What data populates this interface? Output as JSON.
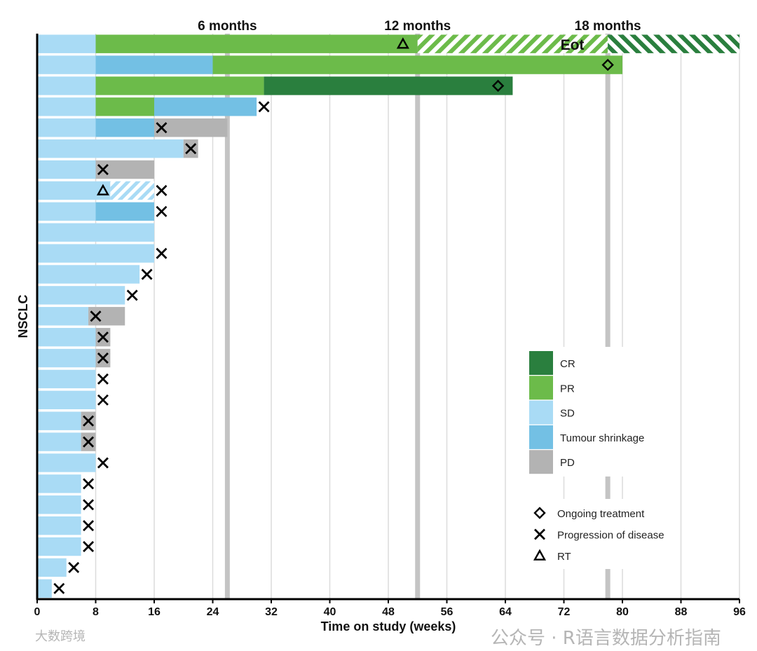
{
  "chart_data": {
    "type": "swimmer",
    "ylabel": "NSCLC",
    "xlabel": "Time on study (weeks)",
    "xlim": [
      0,
      96
    ],
    "xticks": [
      0,
      8,
      16,
      24,
      32,
      40,
      48,
      56,
      64,
      72,
      80,
      88,
      96
    ],
    "milestones": [
      {
        "label": "6 months",
        "x": 26
      },
      {
        "label": "12 months",
        "x": 52
      },
      {
        "label": "18 months",
        "x": 78
      }
    ],
    "colors": {
      "CR": "#2a7f3e",
      "PR": "#6cbb4a",
      "SD": "#a9dbf5",
      "TS": "#73c0e4",
      "PD": "#b3b3b3"
    },
    "legend": {
      "position": "bottom-right",
      "categories": [
        {
          "key": "CR",
          "label": "CR"
        },
        {
          "key": "PR",
          "label": "PR"
        },
        {
          "key": "SD",
          "label": "SD"
        },
        {
          "key": "TS",
          "label": "Tumour shrinkage"
        },
        {
          "key": "PD",
          "label": "PD"
        }
      ],
      "markers": [
        {
          "key": "ongoing",
          "label": "Ongoing treatment"
        },
        {
          "key": "progression",
          "label": "Progression of disease"
        },
        {
          "key": "rt",
          "label": "RT"
        }
      ]
    },
    "annotation": {
      "label": "Eot",
      "x": 72,
      "row": 0
    },
    "rows": [
      {
        "segments": [
          [
            "SD",
            0,
            8
          ],
          [
            "PR",
            8,
            52
          ],
          [
            "PR",
            52,
            78,
            "hatch"
          ],
          [
            "CR",
            78,
            96,
            "hatch2"
          ]
        ],
        "markers": [
          [
            "rt",
            50
          ]
        ]
      },
      {
        "segments": [
          [
            "SD",
            0,
            8
          ],
          [
            "TS",
            8,
            24
          ],
          [
            "PR",
            24,
            80
          ]
        ],
        "markers": [
          [
            "ongoing",
            78
          ]
        ]
      },
      {
        "segments": [
          [
            "SD",
            0,
            8
          ],
          [
            "PR",
            8,
            31
          ],
          [
            "CR",
            31,
            65
          ]
        ],
        "markers": [
          [
            "ongoing",
            63
          ]
        ]
      },
      {
        "segments": [
          [
            "SD",
            0,
            8
          ],
          [
            "PR",
            8,
            16
          ],
          [
            "TS",
            16,
            30
          ]
        ],
        "markers": [
          [
            "progression",
            31
          ]
        ]
      },
      {
        "segments": [
          [
            "SD",
            0,
            8
          ],
          [
            "TS",
            8,
            16
          ],
          [
            "PD",
            16,
            26
          ]
        ],
        "markers": [
          [
            "progression",
            17
          ]
        ]
      },
      {
        "segments": [
          [
            "SD",
            0,
            20
          ],
          [
            "PD",
            20,
            22
          ]
        ],
        "markers": [
          [
            "progression",
            21
          ]
        ]
      },
      {
        "segments": [
          [
            "SD",
            0,
            8
          ],
          [
            "PD",
            8,
            16
          ]
        ],
        "markers": [
          [
            "progression",
            9
          ]
        ]
      },
      {
        "segments": [
          [
            "SD",
            0,
            10
          ],
          [
            "SD",
            10,
            16,
            "hatch"
          ]
        ],
        "markers": [
          [
            "rt",
            9
          ],
          [
            "progression",
            17
          ]
        ]
      },
      {
        "segments": [
          [
            "SD",
            0,
            8
          ],
          [
            "TS",
            8,
            16
          ]
        ],
        "markers": [
          [
            "progression",
            17
          ]
        ]
      },
      {
        "segments": [
          [
            "SD",
            0,
            16
          ]
        ],
        "markers": []
      },
      {
        "segments": [
          [
            "SD",
            0,
            16
          ]
        ],
        "markers": [
          [
            "progression",
            17
          ]
        ]
      },
      {
        "segments": [
          [
            "SD",
            0,
            14
          ]
        ],
        "markers": [
          [
            "progression",
            15
          ]
        ]
      },
      {
        "segments": [
          [
            "SD",
            0,
            12
          ]
        ],
        "markers": [
          [
            "progression",
            13
          ]
        ]
      },
      {
        "segments": [
          [
            "SD",
            0,
            7
          ],
          [
            "PD",
            7,
            12
          ]
        ],
        "markers": [
          [
            "progression",
            8
          ]
        ]
      },
      {
        "segments": [
          [
            "SD",
            0,
            8
          ],
          [
            "PD",
            8,
            10
          ]
        ],
        "markers": [
          [
            "progression",
            9
          ]
        ]
      },
      {
        "segments": [
          [
            "SD",
            0,
            8
          ],
          [
            "PD",
            8,
            10
          ]
        ],
        "markers": [
          [
            "progression",
            9
          ]
        ]
      },
      {
        "segments": [
          [
            "SD",
            0,
            8
          ]
        ],
        "markers": [
          [
            "progression",
            9
          ]
        ]
      },
      {
        "segments": [
          [
            "SD",
            0,
            8
          ]
        ],
        "markers": [
          [
            "progression",
            9
          ]
        ]
      },
      {
        "segments": [
          [
            "SD",
            0,
            6
          ],
          [
            "PD",
            6,
            8
          ]
        ],
        "markers": [
          [
            "progression",
            7
          ]
        ]
      },
      {
        "segments": [
          [
            "SD",
            0,
            6
          ],
          [
            "PD",
            6,
            8
          ]
        ],
        "markers": [
          [
            "progression",
            7
          ]
        ]
      },
      {
        "segments": [
          [
            "SD",
            0,
            8
          ]
        ],
        "markers": [
          [
            "progression",
            9
          ]
        ]
      },
      {
        "segments": [
          [
            "SD",
            0,
            6
          ]
        ],
        "markers": [
          [
            "progression",
            7
          ]
        ]
      },
      {
        "segments": [
          [
            "SD",
            0,
            6
          ]
        ],
        "markers": [
          [
            "progression",
            7
          ]
        ]
      },
      {
        "segments": [
          [
            "SD",
            0,
            6
          ]
        ],
        "markers": [
          [
            "progression",
            7
          ]
        ]
      },
      {
        "segments": [
          [
            "SD",
            0,
            6
          ]
        ],
        "markers": [
          [
            "progression",
            7
          ]
        ]
      },
      {
        "segments": [
          [
            "SD",
            0,
            4
          ]
        ],
        "markers": [
          [
            "progression",
            5
          ]
        ]
      },
      {
        "segments": [
          [
            "SD",
            0,
            2
          ]
        ],
        "markers": [
          [
            "progression",
            3
          ]
        ]
      }
    ]
  },
  "watermark": {
    "main": "公众号 · R语言数据分析指南",
    "corner": "大数跨境"
  }
}
